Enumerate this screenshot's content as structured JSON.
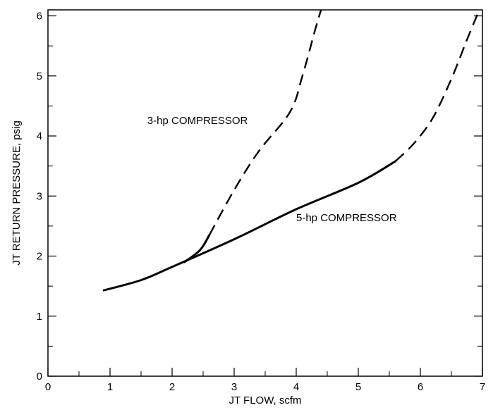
{
  "chart_data": {
    "type": "line",
    "title": "",
    "xlabel": "JT FLOW, scfm",
    "ylabel": "JT RETURN PRESSURE, psig",
    "xlim": [
      0,
      7
    ],
    "ylim": [
      0,
      6.1
    ],
    "x_ticks": [
      "0",
      "1",
      "2",
      "3",
      "4",
      "5",
      "6",
      "7"
    ],
    "y_ticks": [
      "0",
      "1",
      "2",
      "3",
      "4",
      "5",
      "6"
    ],
    "grid": false,
    "legend": "none",
    "annotations": [
      {
        "text": "3-hp COMPRESSOR",
        "x": 1.6,
        "y": 4.2
      },
      {
        "text": "5-hp COMPRESSOR",
        "x": 4.0,
        "y": 2.58
      }
    ],
    "series": [
      {
        "id": "3hp",
        "solid": [
          [
            2.2,
            1.9
          ],
          [
            2.45,
            2.1
          ],
          [
            2.6,
            2.35
          ]
        ],
        "dashed": [
          [
            2.6,
            2.35
          ],
          [
            3.0,
            3.1
          ],
          [
            3.4,
            3.75
          ],
          [
            3.9,
            4.4
          ],
          [
            4.1,
            5.0
          ],
          [
            4.3,
            5.75
          ],
          [
            4.4,
            6.1
          ]
        ]
      },
      {
        "id": "5hp",
        "solid": [
          [
            0.9,
            1.43
          ],
          [
            1.5,
            1.6
          ],
          [
            2.0,
            1.82
          ],
          [
            3.0,
            2.28
          ],
          [
            4.0,
            2.78
          ],
          [
            5.0,
            3.22
          ],
          [
            5.6,
            3.58
          ]
        ],
        "dashed": [
          [
            5.6,
            3.58
          ],
          [
            5.9,
            3.88
          ],
          [
            6.2,
            4.3
          ],
          [
            6.5,
            4.95
          ],
          [
            6.75,
            5.6
          ],
          [
            6.95,
            6.1
          ]
        ]
      }
    ]
  }
}
